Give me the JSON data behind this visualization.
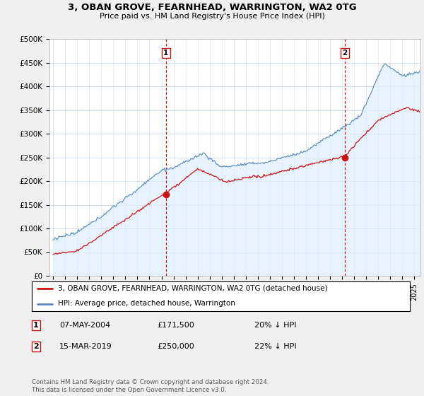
{
  "title": "3, OBAN GROVE, FEARNHEAD, WARRINGTON, WA2 0TG",
  "subtitle": "Price paid vs. HM Land Registry's House Price Index (HPI)",
  "ylabel_ticks": [
    "£0",
    "£50K",
    "£100K",
    "£150K",
    "£200K",
    "£250K",
    "£300K",
    "£350K",
    "£400K",
    "£450K",
    "£500K"
  ],
  "ytick_vals": [
    0,
    50000,
    100000,
    150000,
    200000,
    250000,
    300000,
    350000,
    400000,
    450000,
    500000
  ],
  "ylim": [
    0,
    500000
  ],
  "xlim_start": 1994.7,
  "xlim_end": 2025.5,
  "hpi_color": "#5588bb",
  "hpi_fill_color": "#ddeeff",
  "price_color": "#cc1111",
  "dashed_line_color": "#cc1111",
  "transaction1_x": 2004.37,
  "transaction1_y": 171500,
  "transaction2_x": 2019.21,
  "transaction2_y": 250000,
  "legend_prop_label": "3, OBAN GROVE, FEARNHEAD, WARRINGTON, WA2 0TG (detached house)",
  "legend_hpi_label": "HPI: Average price, detached house, Warrington",
  "table_row1": [
    "1",
    "07-MAY-2004",
    "£171,500",
    "20% ↓ HPI"
  ],
  "table_row2": [
    "2",
    "15-MAR-2019",
    "£250,000",
    "22% ↓ HPI"
  ],
  "footnote": "Contains HM Land Registry data © Crown copyright and database right 2024.\nThis data is licensed under the Open Government Licence v3.0.",
  "background_color": "#f0f0f0",
  "plot_bg_color": "#ffffff",
  "grid_color": "#ccddee"
}
